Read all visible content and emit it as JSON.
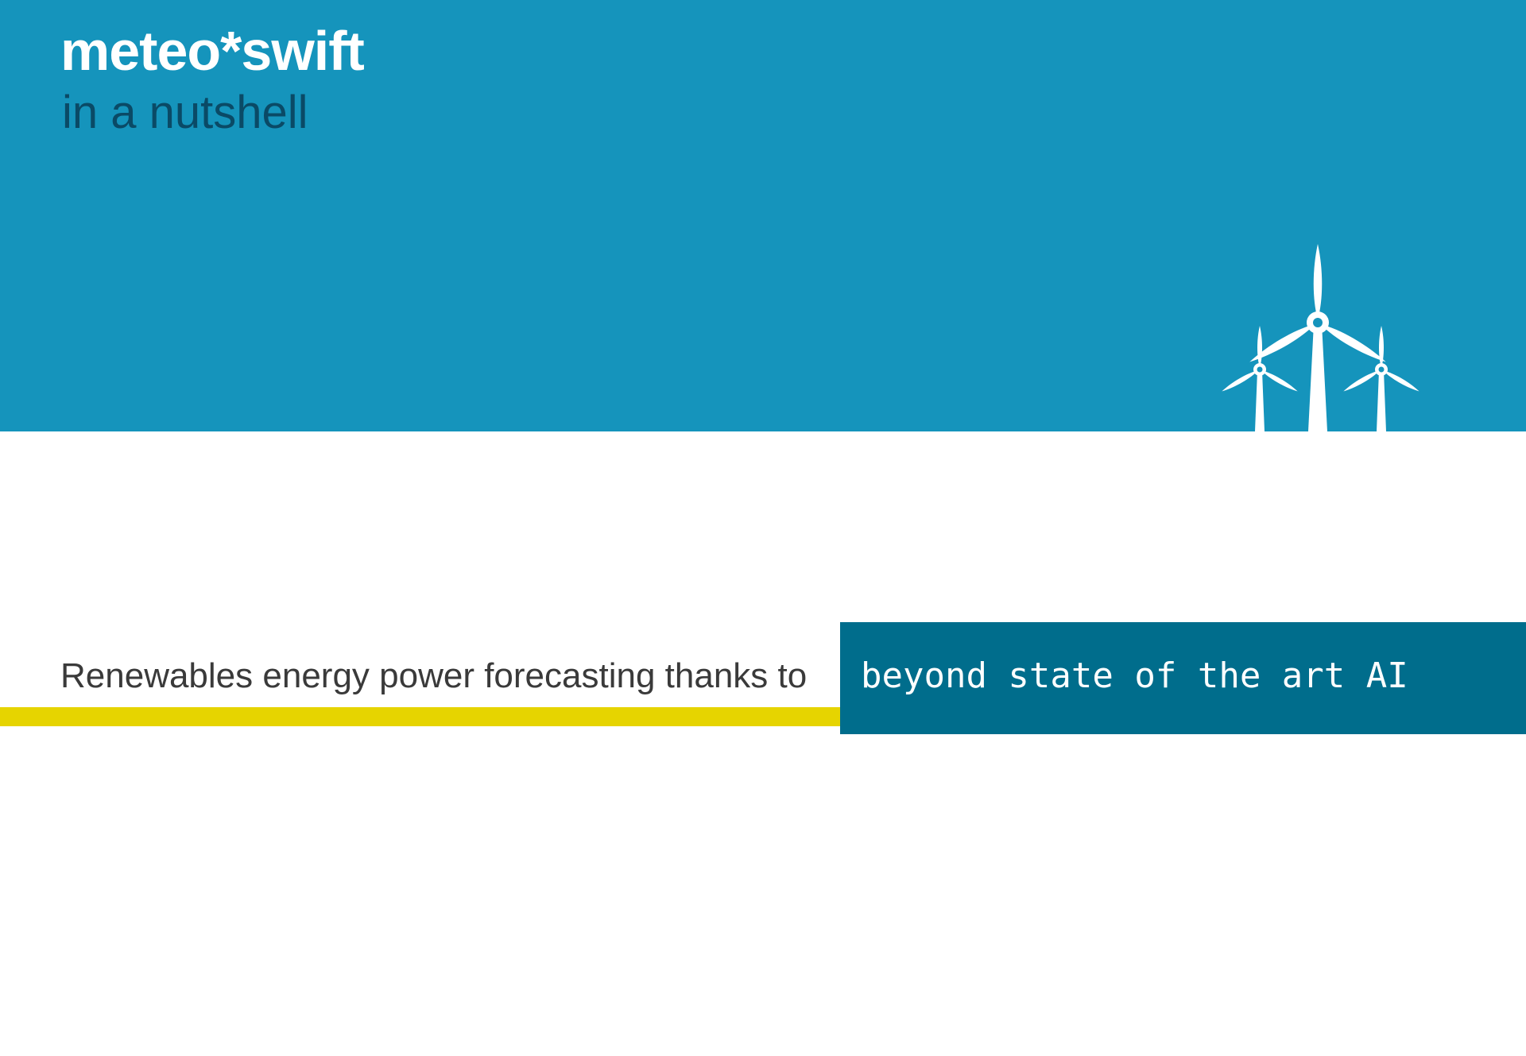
{
  "header": {
    "brand": "meteo*swift",
    "subtitle": "in a nutshell"
  },
  "illustration": {
    "icon": "wind-turbines-icon",
    "turbine_count": 3
  },
  "tagline": {
    "lead": "Renewables energy power forecasting thanks to",
    "highlight": "beyond state of the art AI"
  },
  "colors": {
    "header_blue": "#1594bc",
    "subtitle_navy": "#0a4a66",
    "highlight_teal": "#006d8c",
    "accent_yellow": "#e6d400",
    "text_dark": "#3a3a3a",
    "white": "#ffffff"
  }
}
